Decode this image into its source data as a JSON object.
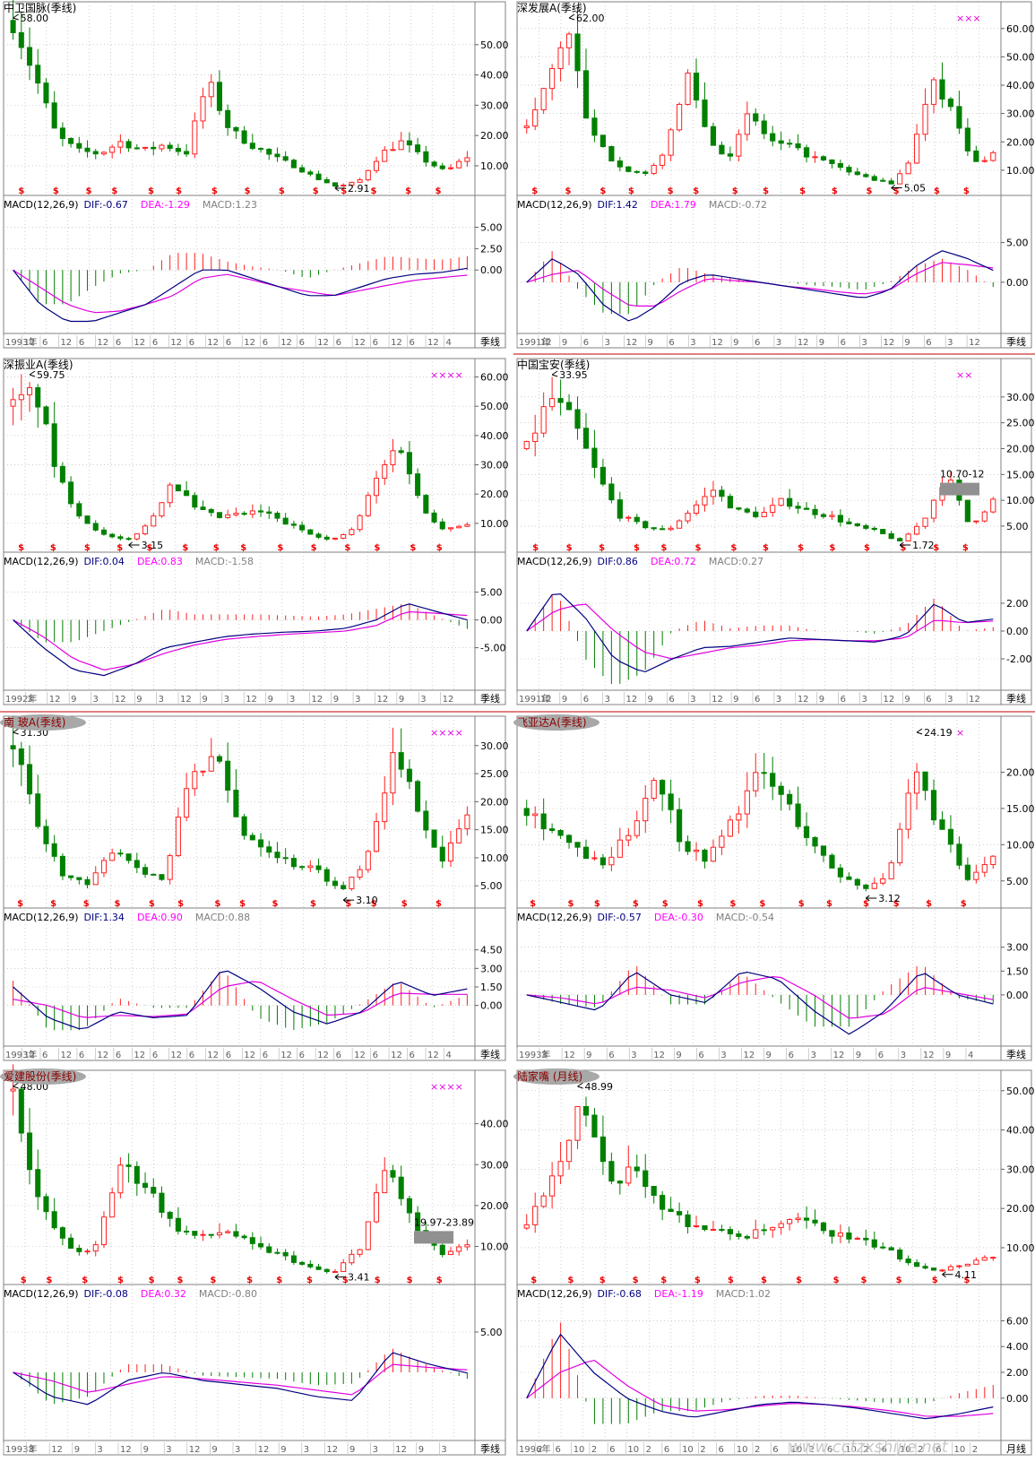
{
  "panels": [
    {
      "title": "中卫国脉(季线)",
      "title_style": "plain",
      "max_label": "58.00",
      "min_label": "2.91",
      "price_ticks": [
        "50.00",
        "40.00",
        "30.00",
        "20.00",
        "10.00"
      ],
      "price_tick_values": [
        50,
        40,
        30,
        20,
        10
      ],
      "price_range": [
        2,
        60
      ],
      "marks": "",
      "range_label": "",
      "macd_header": {
        "name": "MACD(12,26,9)",
        "dif": "DIF:-0.67",
        "dea": "DEA:-1.29",
        "macd": "MACD:1.23"
      },
      "macd_ticks": [
        "5.00",
        "2.50",
        "0.00"
      ],
      "macd_tick_values": [
        5,
        2.5,
        0
      ],
      "macd_range": [
        -7,
        6
      ],
      "time_labels": [
        "1993年",
        "12",
        "6",
        "12",
        "6",
        "12",
        "6",
        "12",
        "6",
        "12",
        "6",
        "12",
        "6",
        "12",
        "6",
        "12",
        "6",
        "12",
        "6",
        "12",
        "6",
        "12",
        "6",
        "12",
        "4"
      ],
      "period": "季线",
      "chart_data": {
        "type": "candlestick",
        "title": "中卫国脉(季线)",
        "price_keypoints": [
          58,
          40,
          20,
          15,
          14,
          18,
          15,
          17,
          14,
          38,
          22,
          17,
          13,
          10,
          6,
          3,
          5,
          14,
          18,
          12,
          8,
          13
        ],
        "price_max": 58.0,
        "price_min": 2.91,
        "macd": {
          "dif": -0.67,
          "dea": -1.29,
          "macd": 1.23,
          "dif_keypoints": [
            0,
            -4,
            -6,
            -6,
            -5,
            -4,
            -2,
            0,
            0,
            -1,
            -2,
            -3,
            -3,
            -2,
            -1,
            -0.5,
            -0.3,
            0.2
          ],
          "dea_keypoints": [
            0,
            -2,
            -4,
            -5,
            -4.8,
            -4,
            -3,
            -1,
            -0.5,
            -1.2,
            -2,
            -2.5,
            -3,
            -2.4,
            -1.8,
            -1.2,
            -0.9,
            -0.6
          ]
        }
      }
    },
    {
      "title": "深发展A(季线)",
      "title_style": "plain",
      "max_label": "62.00",
      "min_label": "5.05",
      "price_ticks": [
        "60.00",
        "50.00",
        "40.00",
        "30.00",
        "20.00",
        "10.00"
      ],
      "price_tick_values": [
        60,
        50,
        40,
        30,
        20,
        10
      ],
      "price_range": [
        3,
        65
      ],
      "marks": "×××",
      "range_label": "",
      "macd_header": {
        "name": "MACD(12,26,9)",
        "dif": "DIF:1.42",
        "dea": "DEA:1.79",
        "macd": "MACD:-0.72"
      },
      "macd_ticks": [
        "5.00",
        "0.00"
      ],
      "macd_tick_values": [
        5,
        0
      ],
      "macd_range": [
        -6,
        8
      ],
      "time_labels": [
        "1991年",
        "12",
        "9",
        "6",
        "3",
        "12",
        "9",
        "6",
        "3",
        "12",
        "9",
        "6",
        "3",
        "12",
        "9",
        "6",
        "3",
        "12",
        "9",
        "6",
        "3",
        "12"
      ],
      "period": "季线",
      "chart_data": {
        "type": "candlestick",
        "title": "深发展A(季线)",
        "price_keypoints": [
          25,
          40,
          62,
          25,
          15,
          10,
          8,
          20,
          45,
          20,
          15,
          30,
          20,
          18,
          15,
          12,
          9,
          7,
          5,
          15,
          45,
          30,
          12,
          16
        ],
        "price_max": 62.0,
        "price_min": 5.05,
        "macd": {
          "dif": 1.42,
          "dea": 1.79,
          "macd": -0.72,
          "dif_keypoints": [
            0,
            3,
            1,
            -3,
            -5,
            -3,
            0,
            1,
            0.5,
            0,
            -0.5,
            -1,
            -1.5,
            -2,
            -1,
            2,
            4,
            3,
            1.5
          ],
          "dea_keypoints": [
            0,
            1,
            1.5,
            -1,
            -3,
            -3,
            -1,
            0.5,
            0.2,
            0,
            -0.5,
            -0.8,
            -1.2,
            -1.5,
            -1,
            1,
            2.5,
            2.2,
            1.8
          ]
        }
      }
    },
    {
      "title": "深振业A(季线)",
      "title_style": "plain",
      "max_label": "59.75",
      "min_label": "3.15",
      "price_ticks": [
        "60.00",
        "50.00",
        "40.00",
        "30.00",
        "20.00",
        "10.00"
      ],
      "price_tick_values": [
        60,
        50,
        40,
        30,
        20,
        10
      ],
      "price_range": [
        2,
        62
      ],
      "marks": "××××",
      "range_label": "",
      "macd_header": {
        "name": "MACD(12,26,9)",
        "dif": "DIF:0.04",
        "dea": "DEA:0.83",
        "macd": "MACD:-1.58"
      },
      "macd_ticks": [
        "5.00",
        "0.00",
        "-5.00"
      ],
      "macd_tick_values": [
        5,
        0,
        -5
      ],
      "macd_range": [
        -12,
        8
      ],
      "time_labels": [
        "1992年",
        "3",
        "12",
        "9",
        "3",
        "12",
        "9",
        "3",
        "12",
        "9",
        "3",
        "12",
        "9",
        "3",
        "12",
        "9",
        "3",
        "12",
        "9",
        "3",
        "12"
      ],
      "period": "季线",
      "chart_data": {
        "type": "candlestick",
        "title": "深振业A(季线)",
        "price_keypoints": [
          50,
          55,
          25,
          12,
          6,
          4,
          10,
          25,
          15,
          12,
          13,
          14,
          10,
          7,
          4,
          8,
          25,
          38,
          15,
          8,
          10
        ],
        "price_max": 59.75,
        "price_min": 3.15,
        "macd": {
          "dif": 0.04,
          "dea": 0.83,
          "macd": -1.58,
          "dif_keypoints": [
            0,
            -5,
            -9,
            -10,
            -8,
            -5,
            -4,
            -3,
            -2.5,
            -2.2,
            -2,
            -1.5,
            0,
            3,
            1.5,
            0
          ],
          "dea_keypoints": [
            0,
            -3,
            -7,
            -9,
            -8,
            -6,
            -4.5,
            -3.5,
            -3,
            -2.6,
            -2.3,
            -2,
            -1,
            1.5,
            1.2,
            0.8
          ]
        }
      }
    },
    {
      "title": "中国宝安(季线)",
      "title_style": "plain",
      "max_label": "33.95",
      "min_label": "1.72",
      "price_ticks": [
        "30.00",
        "25.00",
        "20.00",
        "15.00",
        "10.00",
        "5.00"
      ],
      "price_tick_values": [
        30,
        25,
        20,
        15,
        10,
        5
      ],
      "price_range": [
        1,
        35
      ],
      "marks": "××",
      "range_label": "10.70-12",
      "macd_header": {
        "name": "MACD(12,26,9)",
        "dif": "DIF:0.86",
        "dea": "DEA:0.72",
        "macd": "MACD:0.27"
      },
      "macd_ticks": [
        "2.00",
        "0.00",
        "-2.00"
      ],
      "macd_tick_values": [
        2,
        0,
        -2
      ],
      "macd_range": [
        -4,
        4
      ],
      "time_labels": [
        "1991年",
        "12",
        "9",
        "6",
        "3",
        "12",
        "9",
        "6",
        "3",
        "12",
        "9",
        "6",
        "3",
        "12",
        "9",
        "6",
        "3",
        "12",
        "9",
        "6",
        "3",
        "12"
      ],
      "period": "季线",
      "chart_data": {
        "type": "candlestick",
        "title": "中国宝安(季线)",
        "price_keypoints": [
          20,
          30,
          25,
          15,
          7,
          5,
          4,
          8,
          12,
          8,
          7,
          10,
          8,
          7,
          5,
          4,
          2,
          6,
          15,
          5,
          10
        ],
        "price_max": 33.95,
        "price_min": 1.72,
        "macd": {
          "dif": 0.86,
          "dea": 0.72,
          "macd": 0.27,
          "dif_keypoints": [
            0,
            3,
            1,
            -2,
            -3,
            -2,
            -1.2,
            -1.1,
            -0.8,
            -0.5,
            -0.6,
            -0.7,
            -0.8,
            -0.3,
            2,
            0.6,
            0.86
          ],
          "dea_keypoints": [
            0,
            1.5,
            2,
            0,
            -1.5,
            -2,
            -1.6,
            -1.2,
            -1,
            -0.7,
            -0.6,
            -0.7,
            -0.7,
            -0.5,
            0.8,
            0.6,
            0.72
          ]
        }
      }
    },
    {
      "title": "南 玻A(季线)",
      "title_style": "pill",
      "max_label": "31.30",
      "min_label": "3.10",
      "price_ticks": [
        "30.00",
        "25.00",
        "20.00",
        "15.00",
        "10.00",
        "5.00"
      ],
      "price_tick_values": [
        30,
        25,
        20,
        15,
        10,
        5
      ],
      "price_range": [
        2,
        33
      ],
      "marks": "××××",
      "range_label": "",
      "macd_header": {
        "name": "MACD(12,26,9)",
        "dif": "DIF:1.34",
        "dea": "DEA:0.90",
        "macd": "MACD:0.88"
      },
      "macd_ticks": [
        "4.50",
        "3.00",
        "1.50",
        "0.00"
      ],
      "macd_tick_values": [
        4.5,
        3,
        1.5,
        0
      ],
      "macd_range": [
        -3,
        6
      ],
      "time_labels": [
        "1993年",
        "12",
        "6",
        "12",
        "6",
        "12",
        "6",
        "12",
        "6",
        "12",
        "6",
        "12",
        "6",
        "12",
        "6",
        "12",
        "6",
        "12",
        "6",
        "12",
        "6",
        "12",
        "6",
        "12",
        "4"
      ],
      "period": "季线",
      "chart_data": {
        "type": "candlestick",
        "title": "南 玻A(季线)",
        "price_keypoints": [
          30,
          15,
          7,
          5,
          12,
          8,
          6,
          25,
          28,
          15,
          12,
          9,
          8,
          4,
          10,
          28,
          20,
          9,
          18
        ],
        "price_max": 31.3,
        "price_min": 3.1,
        "macd": {
          "dif": 1.34,
          "dea": 0.9,
          "macd": 0.88,
          "dif_keypoints": [
            1.5,
            -1,
            -2,
            -0.5,
            -1,
            -0.8,
            3,
            1.5,
            -0.5,
            -1.5,
            -0.5,
            2,
            0.8,
            1.34
          ],
          "dea_keypoints": [
            0.5,
            0,
            -1,
            -0.8,
            -0.9,
            -0.7,
            1.5,
            2,
            0.5,
            -0.8,
            -0.6,
            1,
            0.9,
            0.9
          ]
        }
      }
    },
    {
      "title": "飞亚达A(季线)",
      "title_style": "pill",
      "max_label": "24.19",
      "min_label": "3.12",
      "price_ticks": [
        "20.00",
        "15.00",
        "10.00",
        "5.00"
      ],
      "price_tick_values": [
        20,
        15,
        10,
        5
      ],
      "price_range": [
        2,
        26
      ],
      "marks": "×",
      "range_label": "",
      "macd_header": {
        "name": "MACD(12,26,9)",
        "dif": "DIF:-0.57",
        "dea": "DEA:-0.30",
        "macd": "MACD:-0.54"
      },
      "macd_ticks": [
        "3.00",
        "1.50",
        "0.00"
      ],
      "macd_tick_values": [
        3,
        1.5,
        0
      ],
      "macd_range": [
        -3,
        4
      ],
      "time_labels": [
        "1993年",
        "3",
        "12",
        "9",
        "6",
        "3",
        "12",
        "9",
        "6",
        "3",
        "12",
        "9",
        "6",
        "3",
        "12",
        "9",
        "6",
        "3",
        "12",
        "9",
        "4"
      ],
      "period": "季线",
      "chart_data": {
        "type": "candlestick",
        "title": "飞亚达A(季线)",
        "price_keypoints": [
          15,
          12,
          9,
          7,
          12,
          20,
          10,
          8,
          14,
          20,
          16,
          10,
          6,
          4,
          6,
          20,
          12,
          5,
          8
        ],
        "price_max": 24.19,
        "price_min": 3.12,
        "macd": {
          "dif": -0.57,
          "dea": -0.3,
          "macd": -0.54,
          "dif_keypoints": [
            0,
            -0.5,
            -1,
            1.5,
            0,
            -0.5,
            1.5,
            1,
            -1,
            -2.5,
            -1,
            1.5,
            0,
            -0.57
          ],
          "dea_keypoints": [
            0,
            -0.2,
            -0.6,
            0.5,
            0.3,
            -0.2,
            0.8,
            1.2,
            0,
            -1.5,
            -1.2,
            0.5,
            0.1,
            -0.3
          ]
        }
      }
    },
    {
      "title": "爱建股份(季线)",
      "title_style": "pill",
      "max_label": "48.00",
      "min_label": "3.41",
      "price_ticks": [
        "40.00",
        "30.00",
        "20.00",
        "10.00"
      ],
      "price_tick_values": [
        40,
        30,
        20,
        10
      ],
      "price_range": [
        2,
        50
      ],
      "marks": "××××",
      "range_label": "19.97-23.89",
      "macd_header": {
        "name": "MACD(12,26,9)",
        "dif": "DIF:-0.08",
        "dea": "DEA:0.32",
        "macd": "MACD:-0.80"
      },
      "macd_ticks": [
        "5.00"
      ],
      "macd_tick_values": [
        5
      ],
      "macd_range": [
        -8,
        8
      ],
      "time_labels": [
        "1993年",
        "3",
        "12",
        "9",
        "3",
        "12",
        "9",
        "3",
        "12",
        "9",
        "3",
        "12",
        "9",
        "3",
        "12",
        "9",
        "3",
        "12",
        "9",
        "3"
      ],
      "period": "季线",
      "chart_data": {
        "type": "candlestick",
        "title": "爱建股份(季线)",
        "price_keypoints": [
          48,
          20,
          10,
          8,
          30,
          25,
          15,
          12,
          14,
          10,
          8,
          5,
          3.4,
          10,
          30,
          15,
          8,
          10
        ],
        "price_max": 48.0,
        "price_min": 3.41,
        "macd": {
          "dif": -0.08,
          "dea": 0.32,
          "macd": -0.8,
          "dif_keypoints": [
            0,
            -3,
            -4,
            -1,
            0,
            -1,
            -1.5,
            -2,
            -3,
            -3.5,
            2.5,
            1,
            -0.08
          ],
          "dea_keypoints": [
            0,
            -1,
            -2.5,
            -1.5,
            -0.5,
            -0.8,
            -1.2,
            -1.6,
            -2.2,
            -2.8,
            1,
            0.6,
            0.32
          ]
        }
      }
    },
    {
      "title": "陆家嘴 (月线)",
      "title_style": "pill",
      "max_label": "48.99",
      "min_label": "4.11",
      "price_ticks": [
        "50.00",
        "40.00",
        "30.00",
        "20.00",
        "10.00"
      ],
      "price_tick_values": [
        50,
        40,
        30,
        20,
        10
      ],
      "price_range": [
        2,
        52
      ],
      "marks": "",
      "range_label": "",
      "macd_header": {
        "name": "MACD(12,26,9)",
        "dif": "DIF:-0.68",
        "dea": "DEA:-1.19",
        "macd": "MACD:1.02"
      },
      "macd_ticks": [
        "6.00",
        "4.00",
        "2.00",
        "0.00"
      ],
      "macd_tick_values": [
        6,
        4,
        2,
        0
      ],
      "macd_range": [
        -3,
        7
      ],
      "time_labels": [
        "1996年",
        "2",
        "6",
        "10",
        "2",
        "6",
        "10",
        "2",
        "6",
        "10",
        "2",
        "6",
        "10",
        "2",
        "6",
        "10",
        "2",
        "6",
        "10",
        "2",
        "6",
        "10",
        "2",
        "6",
        "10",
        "2"
      ],
      "period": "月线",
      "chart_data": {
        "type": "candlestick",
        "title": "陆家嘴 (月线)",
        "price_keypoints": [
          15,
          30,
          48,
          25,
          30,
          20,
          16,
          14,
          13,
          15,
          17,
          14,
          12,
          10,
          6,
          4.2,
          6,
          8
        ],
        "price_max": 48.99,
        "price_min": 4.11,
        "macd": {
          "dif": -0.68,
          "dea": -1.19,
          "macd": 1.02,
          "dif_keypoints": [
            0,
            5,
            2,
            0,
            -1,
            -1.5,
            -1,
            -0.5,
            -0.3,
            -0.5,
            -0.8,
            -1.2,
            -1.6,
            -1.2,
            -0.68
          ],
          "dea_keypoints": [
            0,
            2,
            3,
            1,
            -0.5,
            -1,
            -0.9,
            -0.6,
            -0.4,
            -0.5,
            -0.7,
            -1,
            -1.4,
            -1.4,
            -1.19
          ]
        }
      }
    }
  ],
  "watermark": "www.cctzxshijie.net",
  "colors": {
    "up": "#ff2020",
    "down": "#008000",
    "dif": "#000080",
    "dea": "#e000e0",
    "dea_text": "#ff00ff",
    "signal": "#ee0000",
    "grid": "#b0b0b0",
    "separator": "#c00000"
  }
}
